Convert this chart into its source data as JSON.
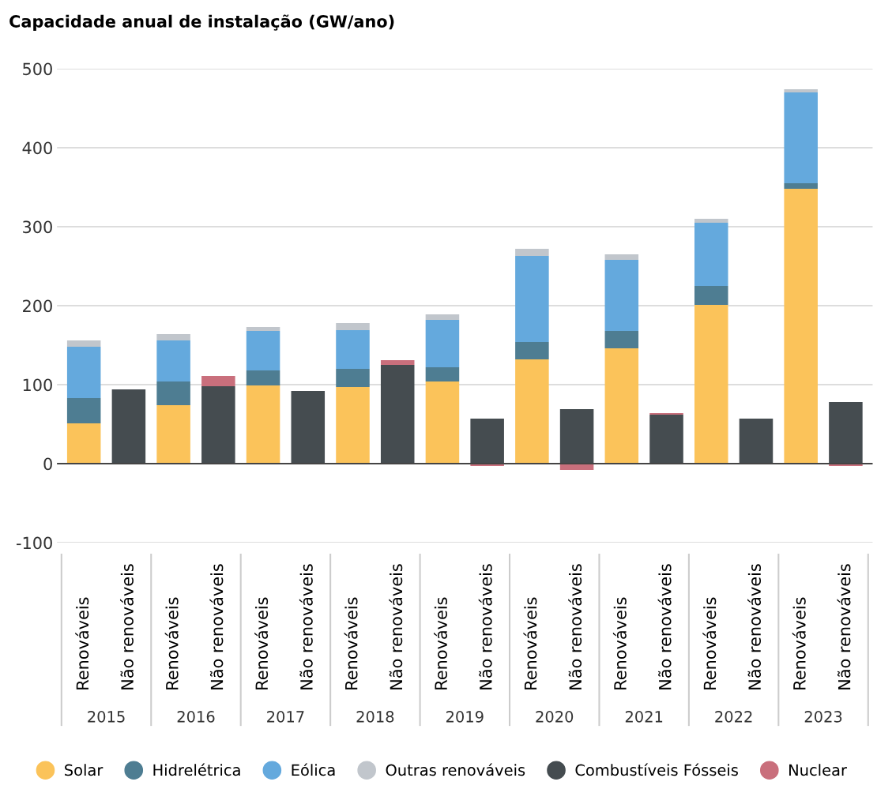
{
  "chart_data": {
    "type": "bar",
    "stacked": true,
    "title": "Capacidade anual de instalação (GW/ano)",
    "categories": [
      "Renováveis",
      "Não renováveis",
      "Renováveis",
      "Não renováveis",
      "Renováveis",
      "Não renováveis",
      "Renováveis",
      "Não renováveis",
      "Renováveis",
      "Não renováveis",
      "Renováveis",
      "Não renováveis",
      "Renováveis",
      "Não renováveis",
      "Renováveis",
      "Não renováveis",
      "Renováveis",
      "Não renováveis"
    ],
    "series": [
      {
        "name": "Solar",
        "color": "#fbc35a",
        "values": [
          51,
          null,
          74,
          null,
          99,
          null,
          97,
          null,
          104,
          null,
          132,
          null,
          146,
          null,
          201,
          null,
          348,
          null
        ]
      },
      {
        "name": "Hidrelétrica",
        "color": "#4e7d92",
        "values": [
          32,
          null,
          30,
          null,
          19,
          null,
          23,
          null,
          18,
          null,
          22,
          null,
          22,
          null,
          24,
          null,
          7,
          null
        ]
      },
      {
        "name": "Eólica",
        "color": "#64a9dd",
        "values": [
          65,
          null,
          52,
          null,
          50,
          null,
          49,
          null,
          60,
          null,
          109,
          null,
          90,
          null,
          80,
          null,
          115,
          null
        ]
      },
      {
        "name": "Outras renováveis",
        "color": "#c1c6cc",
        "values": [
          8,
          null,
          8,
          null,
          5,
          null,
          9,
          null,
          7,
          null,
          9,
          null,
          7,
          null,
          5,
          null,
          4,
          null
        ]
      },
      {
        "name": "Combustíveis Fósseis",
        "color": "#454c50",
        "values": [
          null,
          94,
          null,
          98,
          null,
          92,
          null,
          125,
          null,
          57,
          null,
          69,
          null,
          62,
          null,
          57,
          null,
          78
        ]
      },
      {
        "name": "Nuclear",
        "color": "#c96f7c",
        "values": [
          null,
          null,
          null,
          13,
          null,
          null,
          null,
          6,
          null,
          -3,
          null,
          -8,
          null,
          2,
          null,
          null,
          null,
          -3
        ]
      }
    ],
    "annotations": [
      "2015",
      "2016",
      "2017",
      "2018",
      "2019",
      "2020",
      "2021",
      "2022",
      "2023"
    ],
    "ylim": [
      -100,
      500
    ],
    "yticks": [
      -100,
      0,
      100,
      200,
      300,
      400,
      500
    ],
    "grid": "y",
    "legend": "bottom"
  }
}
